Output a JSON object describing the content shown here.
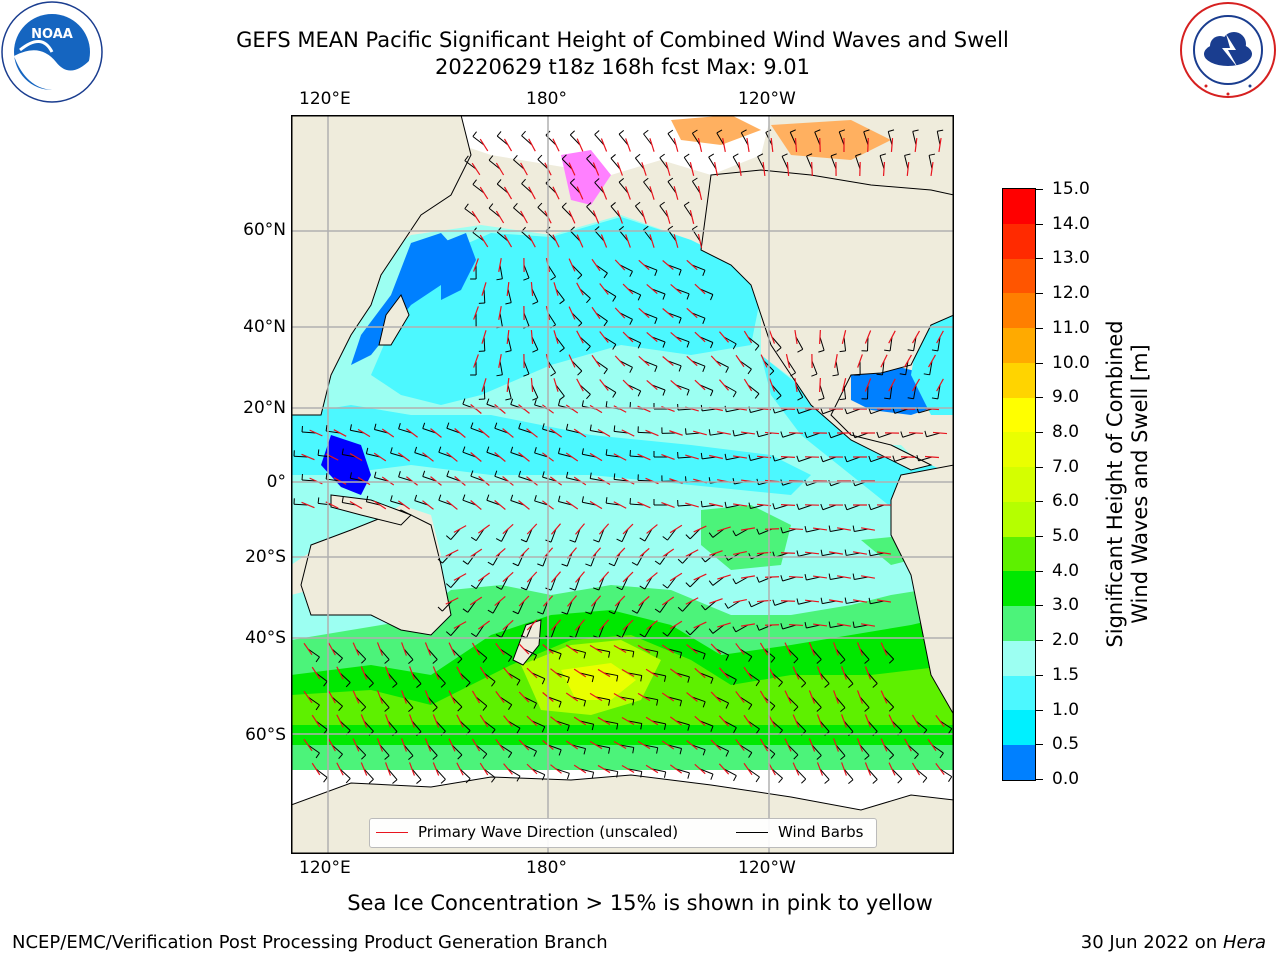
{
  "header": {
    "title_line1": "GEFS MEAN Pacific Significant Height of Combined Wind Waves and Swell",
    "title_line2": "20220629 t18z 168h fcst   Max: 9.01"
  },
  "logos": {
    "left": "NOAA",
    "left_ring_text": "NATIONAL OCEANIC AND ATMOSPHERIC ADMINISTRATION · U.S. DEPARTMENT OF COMMERCE",
    "right_ring_text": "NATIONAL WEATHER SERVICE"
  },
  "map": {
    "lon_labels": [
      "120°E",
      "180°",
      "120°W"
    ],
    "lat_labels": [
      "60°N",
      "40°N",
      "20°N",
      "0°",
      "20°S",
      "40°S",
      "60°S"
    ],
    "colors": {
      "land": "#efecdc",
      "ice_free_ocean": "#ffffff",
      "gridline": "#b0b0b0",
      "wave_arrow": "#e8141e",
      "wind_barb": "#000000"
    }
  },
  "legend": {
    "wave_direction": "Primary Wave Direction (unscaled)",
    "wind_barbs": "Wind Barbs"
  },
  "colorbar": {
    "label_line1": "Significant Height of Combined",
    "label_line2": "Wind Waves and Swell [m]",
    "ticks": [
      "15.0",
      "14.0",
      "13.0",
      "12.0",
      "11.0",
      "10.0",
      "9.0",
      "8.0",
      "7.0",
      "6.0",
      "5.0",
      "4.0",
      "3.0",
      "2.0",
      "1.5",
      "1.0",
      "0.5",
      "0.0"
    ],
    "colors_top_to_bottom": [
      "#ff0000",
      "#ff2a00",
      "#ff5500",
      "#ff7f00",
      "#ffaa00",
      "#ffd400",
      "#ffff00",
      "#eaff00",
      "#d4ff00",
      "#b5ff00",
      "#5ef000",
      "#00e800",
      "#4cf37a",
      "#9cfff2",
      "#4cf8ff",
      "#00f0ff",
      "#0080ff",
      "#0000ff"
    ]
  },
  "footer": {
    "note": "Sea Ice Concentration > 15% is shown in pink to yellow",
    "credit": "NCEP/EMC/Verification Post Processing Product Generation Branch",
    "date_text": "30 Jun 2022 on ",
    "host": "Hera"
  }
}
